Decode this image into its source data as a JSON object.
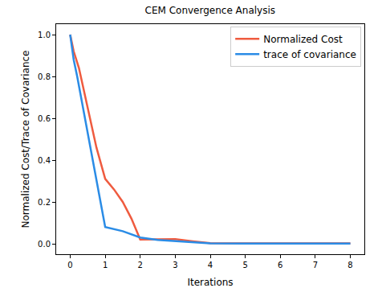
{
  "chart_data": {
    "type": "line",
    "title": "CEM Convergence Analysis",
    "x_label": "Iterations",
    "y_label": "Normalized Cost/Trace of Covariance",
    "series": [
      {
        "name": "Normalized Cost",
        "color": "#ef5b3f",
        "x": [
          0,
          0.1,
          0.25,
          0.5,
          0.75,
          1,
          1.25,
          1.5,
          1.75,
          2,
          2.5,
          3,
          3.5,
          4,
          5,
          6,
          7,
          8
        ],
        "values": [
          1.0,
          0.92,
          0.84,
          0.65,
          0.46,
          0.31,
          0.26,
          0.2,
          0.12,
          0.02,
          0.02,
          0.022,
          0.012,
          0.003,
          0.002,
          0.002,
          0.002,
          0.002
        ]
      },
      {
        "name": "trace of covariance",
        "color": "#2b8ce6",
        "x": [
          0,
          0.1,
          0.2,
          1,
          1.5,
          2,
          2.5,
          3,
          4,
          5,
          6,
          7,
          8
        ],
        "values": [
          1.0,
          0.88,
          0.8,
          0.08,
          0.06,
          0.03,
          0.018,
          0.012,
          0.002,
          0.001,
          0.001,
          0.001,
          0.001
        ]
      }
    ],
    "xlim": [
      -0.4,
      8.4
    ],
    "xticks": [
      0,
      1,
      2,
      3,
      4,
      5,
      6,
      7,
      8
    ],
    "ylim": [
      -0.05,
      1.05
    ],
    "yticks": [
      {
        "value": 0,
        "label": "0.0"
      },
      {
        "value": 0.2,
        "label": "0.2"
      },
      {
        "value": 0.4,
        "label": "0.4"
      },
      {
        "value": 0.6,
        "label": "0.6"
      },
      {
        "value": 0.8,
        "label": "0.8"
      },
      {
        "value": 1.0,
        "label": "1.0"
      }
    ],
    "legend": "upper right",
    "grid": false
  }
}
